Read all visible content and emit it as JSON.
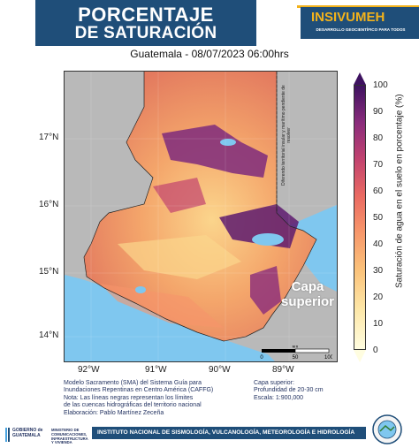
{
  "header": {
    "title_line1": "PORCENTAJE",
    "title_line2": "DE SATURACIÓN",
    "brand_name": "INSIVUMEH",
    "brand_subtitle": "DESARROLLO GEOCIENTÍFICO PARA TODOS"
  },
  "map": {
    "title": "Guatemala - 08/07/2023  06:00hrs",
    "lat_ticks": [
      "17°N",
      "16°N",
      "15°N",
      "14°N"
    ],
    "lon_ticks": [
      "92°W",
      "91°W",
      "90°W",
      "89°W"
    ],
    "overlay_label_line1": "Capa",
    "overlay_label_line2": "superior",
    "border_note": "Diferendo territorial insular y marítimo pendiente de resolver",
    "scale_bar": {
      "unit": "km",
      "ticks": [
        "0",
        "50",
        "100"
      ]
    }
  },
  "colorbar": {
    "label": "Saturación de agua en el suelo en porcentaje (%)",
    "ticks": [
      "100",
      "90",
      "80",
      "70",
      "60",
      "50",
      "40",
      "30",
      "20",
      "10",
      "0"
    ],
    "min": 0,
    "max": 100
  },
  "notes": {
    "line1": "Modelo Sacramento (SMA) del Sistema Guía para",
    "line2": "Inundaciones Repentinas en Centro América (CAFFG)",
    "line3": "Nota: Las líneas negras representan los límites",
    "line4": "de las cuencas hidrográficas del territorio nacional",
    "line5": "Elaboración: Pablo Martínez Zeceña"
  },
  "layer_info": {
    "line1": "Capa superior:",
    "line2": "Profundidad de 20-30 cm",
    "line3": "Escala: 1:900,000"
  },
  "footer": {
    "gov_line1": "GOBIERNO de",
    "gov_line2": "GUATEMALA",
    "ministry": "MINISTERIO DE COMUNICACIONES, INFRAESTRUCTURA Y VIVIENDA",
    "institute": "INSTITUTO NACIONAL DE SISMOLOGÍA, VULCANOLOGÍA, METEOROLOGÍA E HIDROLOGÍA"
  },
  "colors": {
    "header_blue": "#1f4e79",
    "brand_gold": "#f2b21b",
    "sea": "#7fc7ef",
    "neighbor_land": "#b9b9b9"
  }
}
